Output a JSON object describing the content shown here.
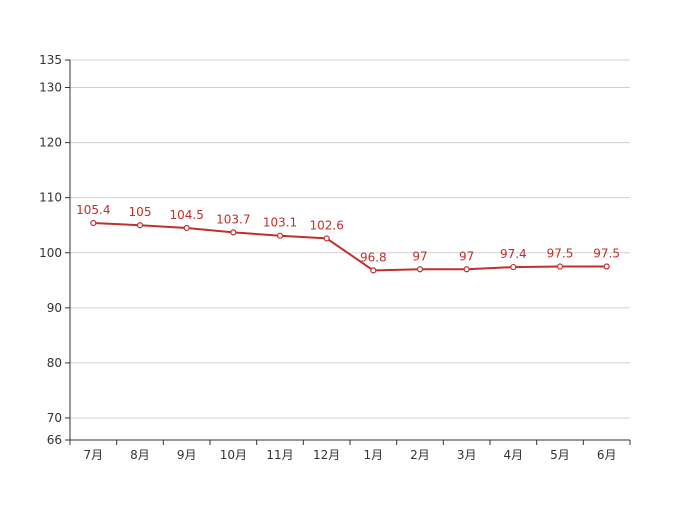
{
  "chart_data": {
    "type": "line",
    "categories": [
      "7月",
      "8月",
      "9月",
      "10月",
      "11月",
      "12月",
      "1月",
      "2月",
      "3月",
      "4月",
      "5月",
      "6月"
    ],
    "series": [
      {
        "values": [
          105.4,
          105,
          104.5,
          103.7,
          103.1,
          102.6,
          96.8,
          97,
          97,
          97.4,
          97.5,
          97.5
        ]
      }
    ],
    "data_labels": [
      "105.4",
      "105",
      "104.5",
      "103.7",
      "103.1",
      "102.6",
      "96.8",
      "97",
      "97",
      "97.4",
      "97.5",
      "97.5"
    ],
    "y_ticks": [
      66,
      70,
      80,
      90,
      100,
      110,
      120,
      130,
      135
    ],
    "ylim": [
      66,
      135
    ],
    "grid": true,
    "legend": "none",
    "colors": {
      "series": "#c0302a",
      "grid": "#d0d0d0",
      "axis": "#333333",
      "text": "#333333"
    }
  }
}
